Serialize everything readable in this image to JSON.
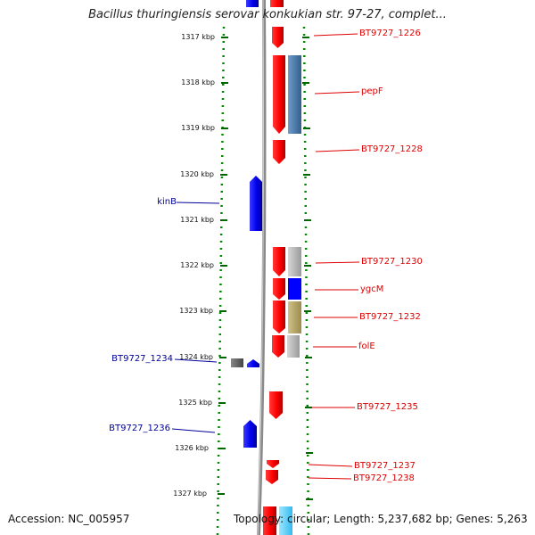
{
  "title": "Bacillus thuringiensis serovar konkukian str. 97-27, complet...",
  "footer": {
    "accession": "Accession: NC_005957",
    "topology": "Topology: circular; Length: 5,237,682 bp; Genes: 5,263"
  },
  "colors": {
    "forward_gene": "#ff0000",
    "reverse_gene": "#0000ee",
    "forward_label": "#dd0000",
    "reverse_label": "#000099",
    "scale_dots": "#008800",
    "backbone": "#888888",
    "cog_steelblue": "#4b7db0",
    "cog_gray": "#b8b8b8",
    "cog_blue": "#0000ff",
    "cog_khaki": "#b8a860"
  },
  "ticks": [
    "1317 kbp",
    "1318 kbp",
    "1319 kbp",
    "1320 kbp",
    "1321 kbp",
    "1322 kbp",
    "1323 kbp",
    "1324 kbp",
    "1325 kbp",
    "1326 kbp",
    "1327 kbp"
  ],
  "forward_genes": [
    {
      "name": "BT9727_1226",
      "labeled": true
    },
    {
      "name": "pepF",
      "labeled": true
    },
    {
      "name": "BT9727_1228",
      "labeled": true
    },
    {
      "name": "BT9727_1230",
      "labeled": true
    },
    {
      "name": "ygcM",
      "labeled": true
    },
    {
      "name": "BT9727_1232",
      "labeled": true
    },
    {
      "name": "folE",
      "labeled": true
    },
    {
      "name": "BT9727_1235",
      "labeled": true
    },
    {
      "name": "BT9727_1237",
      "labeled": true
    },
    {
      "name": "BT9727_1238",
      "labeled": true
    }
  ],
  "reverse_genes": [
    {
      "name": "kinB",
      "labeled": true
    },
    {
      "name": "BT9727_1234",
      "labeled": true
    },
    {
      "name": "BT9727_1236",
      "labeled": true
    }
  ]
}
